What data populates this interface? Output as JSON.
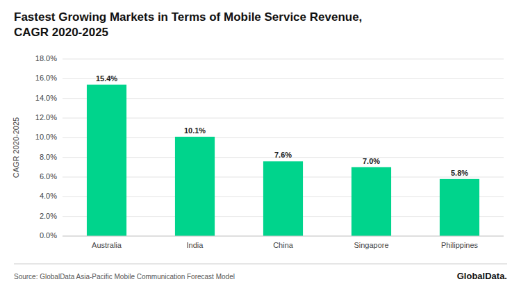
{
  "chart_data": {
    "type": "bar",
    "title": "Fastest Growing Markets in Terms of Mobile Service Revenue,",
    "subtitle": "CAGR 2020-2025",
    "categories": [
      "Australia",
      "India",
      "China",
      "Singapore",
      "Philippines"
    ],
    "values": [
      15.4,
      10.1,
      7.6,
      7.0,
      5.8
    ],
    "value_labels": [
      "15.4%",
      "10.1%",
      "7.6%",
      "7.0%",
      "5.8%"
    ],
    "data_labels": true,
    "color": "#00D48C",
    "ylabel": "CAGR 2020-2025",
    "ylim": [
      0,
      18
    ],
    "yticks": [
      {
        "value": 0,
        "label": "0.0%"
      },
      {
        "value": 2,
        "label": "2.0%"
      },
      {
        "value": 4,
        "label": "4.0%"
      },
      {
        "value": 6,
        "label": "6.0%"
      },
      {
        "value": 8,
        "label": "8.0%"
      },
      {
        "value": 10,
        "label": "10.0%"
      },
      {
        "value": 12,
        "label": "12.0%"
      },
      {
        "value": 14,
        "label": "14.0%"
      },
      {
        "value": 16,
        "label": "16.0%"
      },
      {
        "value": 18,
        "label": "18.0%"
      }
    ],
    "grid": true,
    "annotations": [
      "Source: GlobalData Asia-Pacific Mobile Communication Forecast Model",
      "GlobalData."
    ]
  }
}
